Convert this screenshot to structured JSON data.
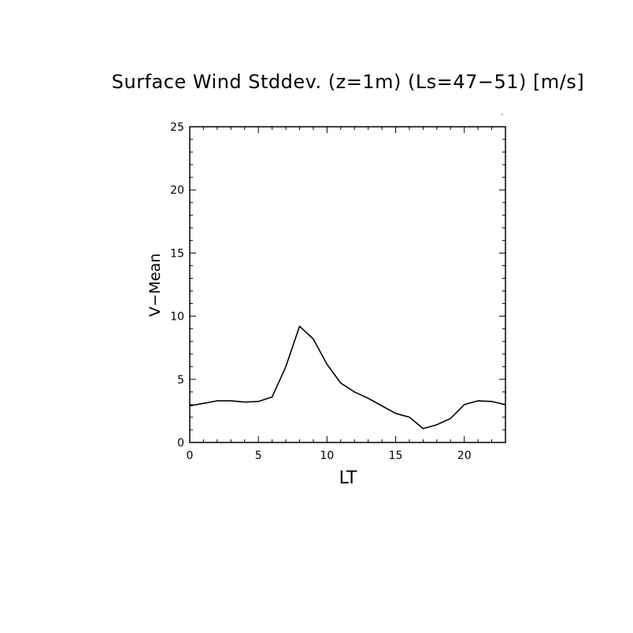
{
  "chart_data": {
    "type": "line",
    "title": "Surface Wind Stddev. (z=1m) (Ls=47−51) [m/s]",
    "xlabel": "LT",
    "ylabel": "V−Mean",
    "xlim": [
      0,
      23
    ],
    "ylim": [
      0,
      25
    ],
    "xticks": [
      0,
      5,
      10,
      15,
      20
    ],
    "yticks": [
      0,
      5,
      10,
      15,
      20,
      25
    ],
    "grid": false,
    "line_color": "#000000",
    "series": [
      {
        "x": [
          0,
          1,
          2,
          3,
          4,
          5,
          6,
          7,
          8,
          9,
          10,
          11,
          12,
          13,
          14,
          15,
          16,
          17,
          18,
          19,
          20,
          21,
          22,
          23
        ],
        "y": [
          2.9,
          3.1,
          3.3,
          3.3,
          3.2,
          3.25,
          3.6,
          6.0,
          9.2,
          8.2,
          6.2,
          4.7,
          4.0,
          3.5,
          2.9,
          2.3,
          2.0,
          1.1,
          1.4,
          1.9,
          3.0,
          3.3,
          3.25,
          3.0
        ]
      }
    ]
  }
}
